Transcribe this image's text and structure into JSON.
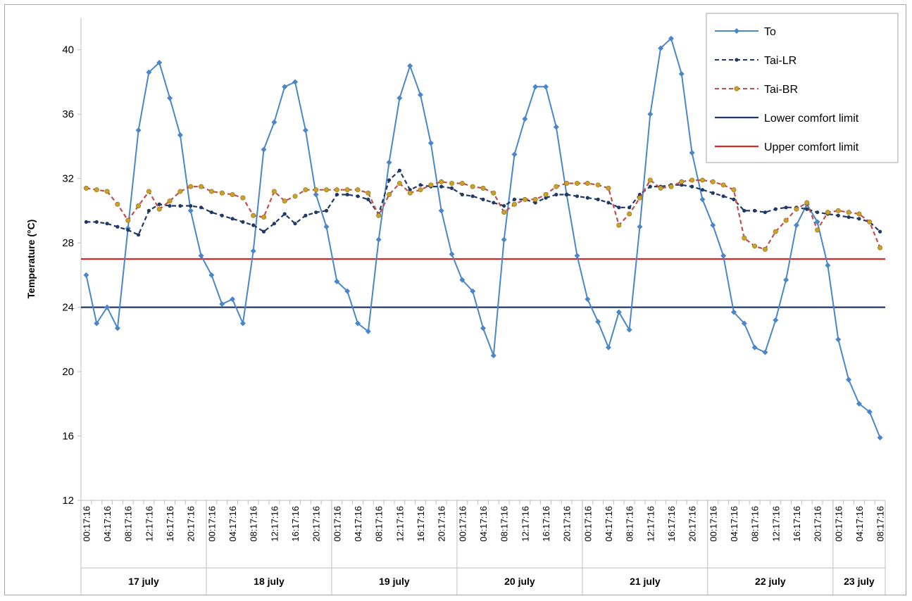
{
  "chart_data": {
    "type": "line",
    "ylabel": "Temperature (°C)",
    "ylim": [
      12,
      42
    ],
    "yticks": [
      12,
      16,
      20,
      24,
      28,
      32,
      36,
      40
    ],
    "x_tick_labels": [
      "00:17:16",
      "04:17:16",
      "08:17:16",
      "12:17:16",
      "16:17:16",
      "20:17:16"
    ],
    "days": [
      {
        "label": "17 july",
        "points": 12
      },
      {
        "label": "18 july",
        "points": 12
      },
      {
        "label": "19 july",
        "points": 12
      },
      {
        "label": "20 july",
        "points": 12
      },
      {
        "label": "21 july",
        "points": 12
      },
      {
        "label": "22 july",
        "points": 12
      },
      {
        "label": "23 july",
        "points": 5
      }
    ],
    "series": [
      {
        "name": "To",
        "color": "#4a86c8",
        "style": "solid",
        "marker": "diamond",
        "values": [
          26.0,
          23.0,
          24.0,
          22.7,
          28.9,
          35.0,
          38.6,
          39.2,
          37.0,
          34.7,
          30.0,
          27.2,
          26.0,
          24.2,
          24.5,
          23.0,
          27.5,
          33.8,
          35.5,
          37.7,
          38.0,
          35.0,
          31.0,
          29.0,
          25.6,
          25.0,
          23.0,
          22.5,
          28.2,
          33.0,
          37.0,
          39.0,
          37.2,
          34.2,
          30.0,
          27.3,
          25.7,
          25.0,
          22.7,
          21.0,
          28.2,
          33.5,
          35.7,
          37.7,
          37.7,
          35.2,
          31.0,
          27.2,
          24.5,
          23.1,
          21.5,
          23.7,
          22.6,
          29.0,
          36.0,
          40.1,
          40.7,
          38.5,
          33.6,
          30.7,
          29.1,
          27.2,
          23.7,
          23.0,
          21.5,
          21.2,
          23.2,
          25.7,
          29.1,
          30.4,
          29.3,
          26.6,
          22.0,
          19.5,
          18.0,
          17.5,
          15.9
        ]
      },
      {
        "name": "Tai-LR",
        "color": "#1f3864",
        "style": "dashed",
        "marker": "dot",
        "values": [
          29.3,
          29.3,
          29.2,
          29.0,
          28.8,
          28.5,
          30.0,
          30.4,
          30.3,
          30.3,
          30.3,
          30.2,
          29.9,
          29.7,
          29.5,
          29.3,
          29.1,
          28.7,
          29.2,
          29.8,
          29.2,
          29.7,
          29.9,
          30.0,
          31.0,
          31.0,
          30.9,
          30.7,
          29.8,
          31.9,
          32.5,
          31.3,
          31.6,
          31.5,
          31.5,
          31.4,
          31.0,
          30.9,
          30.7,
          30.5,
          30.3,
          30.7,
          30.7,
          30.5,
          30.8,
          31.0,
          31.0,
          30.9,
          30.8,
          30.7,
          30.5,
          30.2,
          30.2,
          31.0,
          31.5,
          31.5,
          31.6,
          31.6,
          31.5,
          31.3,
          31.1,
          30.9,
          30.7,
          30.0,
          30.0,
          29.9,
          30.1,
          30.2,
          30.2,
          30.1,
          29.9,
          29.8,
          29.7,
          29.6,
          29.5,
          29.3,
          28.7
        ]
      },
      {
        "name": "Tai-BR",
        "color": "#c0504d",
        "style": "dashed",
        "marker": "dot-gold",
        "values": [
          31.4,
          31.3,
          31.2,
          30.4,
          29.4,
          30.3,
          31.2,
          30.1,
          30.6,
          31.2,
          31.5,
          31.5,
          31.2,
          31.1,
          31.0,
          30.8,
          29.7,
          29.6,
          31.2,
          30.6,
          30.9,
          31.3,
          31.3,
          31.3,
          31.3,
          31.3,
          31.3,
          31.1,
          29.7,
          31.0,
          31.7,
          31.1,
          31.3,
          31.6,
          31.8,
          31.7,
          31.7,
          31.5,
          31.4,
          31.1,
          29.9,
          30.4,
          30.7,
          30.7,
          31.0,
          31.5,
          31.7,
          31.7,
          31.7,
          31.6,
          31.4,
          29.1,
          29.8,
          30.8,
          31.9,
          31.4,
          31.5,
          31.8,
          31.9,
          31.9,
          31.8,
          31.6,
          31.3,
          28.3,
          27.8,
          27.6,
          28.7,
          29.4,
          30.1,
          30.5,
          28.8,
          29.9,
          30.0,
          29.9,
          29.8,
          29.3,
          27.7
        ]
      },
      {
        "name": "Lower comfort limit",
        "color": "#1f3864",
        "style": "solid",
        "constant": 24
      },
      {
        "name": "Upper comfort limit",
        "color": "#d62828",
        "style": "solid",
        "constant": 27
      }
    ]
  }
}
